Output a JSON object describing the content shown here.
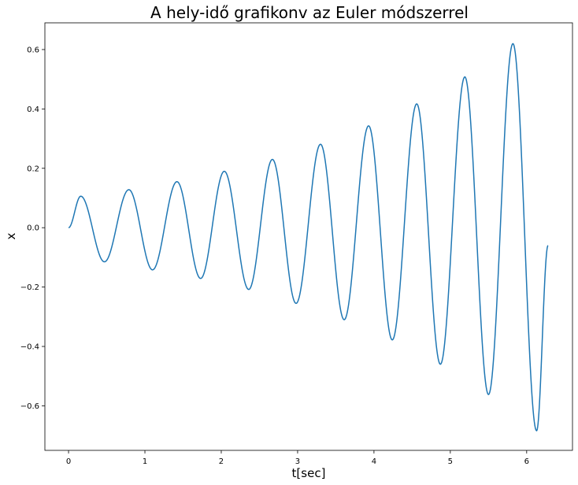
{
  "chart_data": {
    "type": "line",
    "title": "A hely-idő grafikonv az Euler módszerrel",
    "xlabel": "t[sec]",
    "ylabel": "x",
    "xlim": [
      -0.31,
      6.6
    ],
    "ylim": [
      -0.75,
      0.69
    ],
    "xticks": [
      0,
      1,
      2,
      3,
      4,
      5,
      6
    ],
    "yticks": [
      -0.6,
      -0.4,
      -0.2,
      0.0,
      0.2,
      0.4,
      0.6
    ],
    "ytick_labels": [
      "−0.6",
      "−0.4",
      "−0.2",
      "0.0",
      "0.2",
      "0.4",
      "0.6"
    ],
    "grid": false,
    "series": [
      {
        "color": "#1f77b4",
        "extrema": [
          [
            0.0,
            0.0
          ],
          [
            0.16,
            0.106
          ],
          [
            0.47,
            -0.115
          ],
          [
            0.79,
            0.128
          ],
          [
            1.1,
            -0.142
          ],
          [
            1.42,
            0.155
          ],
          [
            1.73,
            -0.171
          ],
          [
            2.04,
            0.19
          ],
          [
            2.36,
            -0.208
          ],
          [
            2.67,
            0.23
          ],
          [
            2.98,
            -0.255
          ],
          [
            3.3,
            0.281
          ],
          [
            3.61,
            -0.31
          ],
          [
            3.93,
            0.343
          ],
          [
            4.24,
            -0.378
          ],
          [
            4.56,
            0.417
          ],
          [
            4.87,
            -0.46
          ],
          [
            5.19,
            0.508
          ],
          [
            5.5,
            -0.562
          ],
          [
            5.82,
            0.62
          ],
          [
            6.13,
            -0.684
          ],
          [
            6.28,
            -0.06
          ]
        ]
      }
    ]
  }
}
